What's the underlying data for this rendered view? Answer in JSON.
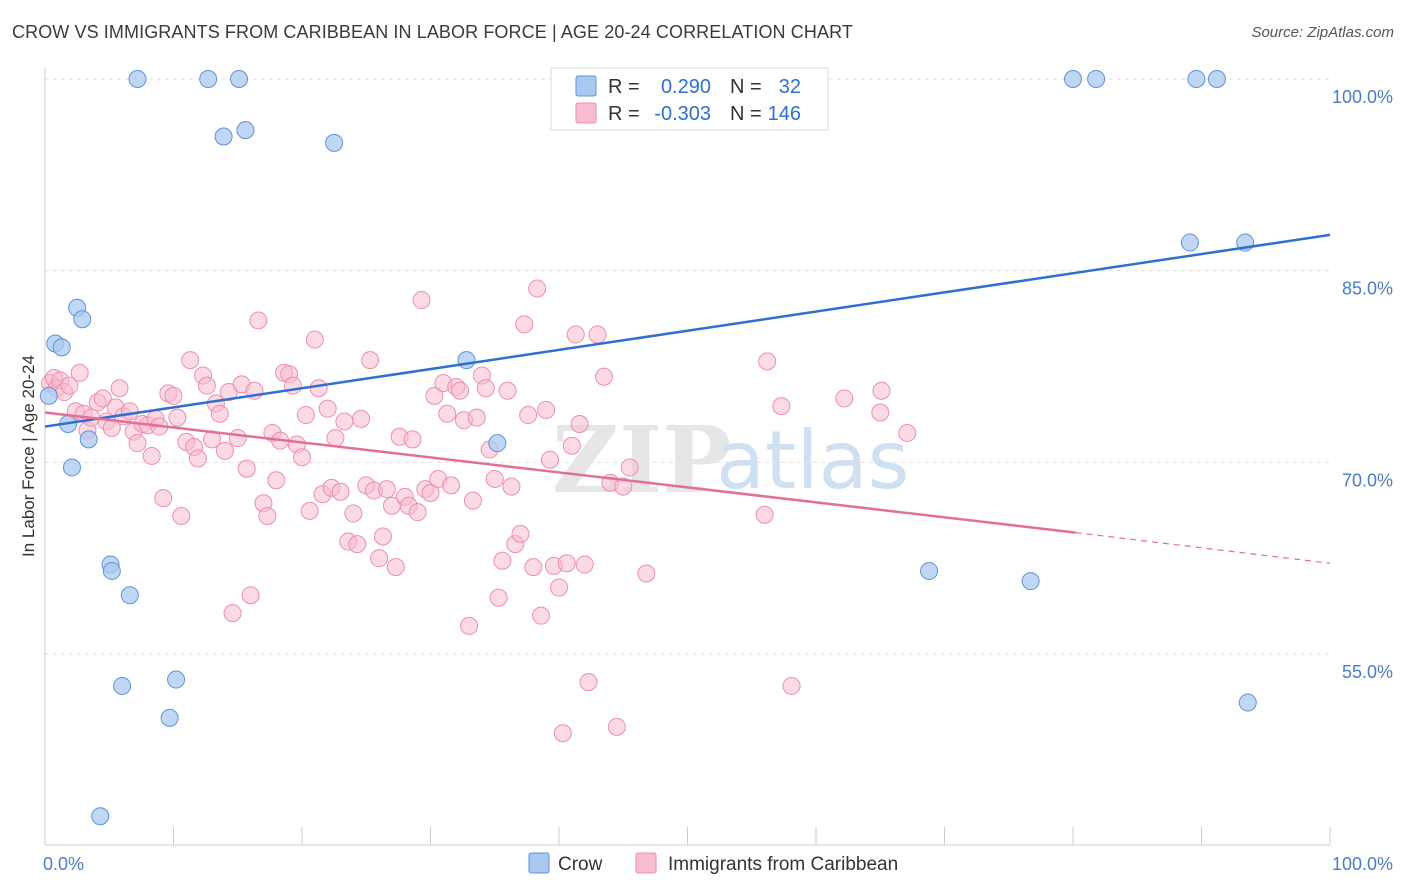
{
  "title": "CROW VS IMMIGRANTS FROM CARIBBEAN IN LABOR FORCE | AGE 20-24 CORRELATION CHART",
  "source": "Source: ZipAtlas.com",
  "watermark": {
    "zip": "ZIP",
    "atlas": "atlas"
  },
  "colors": {
    "crow_fill": "#a9c9f0",
    "crow_stroke": "#5f93d8",
    "crow_line": "#2f6fd1",
    "carib_fill": "#f7bcd0",
    "carib_stroke": "#ec8fae",
    "carib_line": "#e0709b",
    "grid": "#dddddd",
    "tick": "#4a7cc9"
  },
  "legend": {
    "rows": [
      {
        "r_label": "R =",
        "r_value": "0.290",
        "n_label": "N =",
        "n_value": "32"
      },
      {
        "r_label": "R =",
        "r_value": "-0.303",
        "n_label": "N =",
        "n_value": "146"
      }
    ]
  },
  "chart_data": {
    "type": "scatter",
    "title": "CROW VS IMMIGRANTS FROM CARIBBEAN IN LABOR FORCE | AGE 20-24 CORRELATION CHART",
    "xlabel": "",
    "ylabel": "In Labor Force | Age 20-24",
    "xlim": [
      0,
      100
    ],
    "ylim": [
      40,
      102
    ],
    "x_tick_labels": [
      "0.0%",
      "100.0%"
    ],
    "y_ticks": [
      55,
      70,
      85,
      100
    ],
    "y_tick_labels": [
      "55.0%",
      "70.0%",
      "85.0%",
      "100.0%"
    ],
    "grid": true,
    "legend_position": "top-center",
    "series": [
      {
        "name": "Crow",
        "R": 0.29,
        "N": 32,
        "trend": {
          "x": [
            0,
            100
          ],
          "y": [
            72.8,
            87.8
          ]
        },
        "points": [
          [
            0.3,
            75.2
          ],
          [
            0.8,
            79.3
          ],
          [
            1.3,
            79.0
          ],
          [
            1.8,
            73.0
          ],
          [
            2.1,
            69.6
          ],
          [
            2.5,
            82.1
          ],
          [
            2.9,
            81.2
          ],
          [
            3.4,
            71.8
          ],
          [
            4.3,
            42.3
          ],
          [
            5.1,
            62.0
          ],
          [
            5.2,
            61.5
          ],
          [
            6.0,
            52.5
          ],
          [
            6.6,
            59.6
          ],
          [
            7.2,
            100.0
          ],
          [
            9.7,
            50.0
          ],
          [
            10.2,
            53.0
          ],
          [
            12.7,
            100.0
          ],
          [
            13.9,
            95.5
          ],
          [
            15.1,
            100.0
          ],
          [
            15.6,
            96.0
          ],
          [
            22.5,
            95.0
          ],
          [
            32.8,
            78.0
          ],
          [
            35.2,
            71.5
          ],
          [
            68.8,
            61.5
          ],
          [
            76.7,
            60.7
          ],
          [
            80.0,
            100.0
          ],
          [
            81.8,
            100.0
          ],
          [
            89.1,
            87.2
          ],
          [
            89.6,
            100.0
          ],
          [
            91.2,
            100.0
          ],
          [
            93.4,
            87.2
          ],
          [
            93.6,
            51.2
          ]
        ]
      },
      {
        "name": "Immigrants from Caribbean",
        "R": -0.303,
        "N": 146,
        "trend": {
          "x": [
            0,
            80.2
          ],
          "y": [
            73.9,
            64.5
          ]
        },
        "trend_dashed": {
          "x": [
            80.2,
            100
          ],
          "y": [
            64.5,
            62.1
          ]
        },
        "points": [
          [
            0.4,
            76.2
          ],
          [
            0.7,
            76.6
          ],
          [
            0.9,
            75.8
          ],
          [
            1.2,
            76.4
          ],
          [
            1.5,
            75.5
          ],
          [
            1.9,
            76.0
          ],
          [
            2.4,
            74.0
          ],
          [
            2.7,
            77.0
          ],
          [
            3.0,
            73.8
          ],
          [
            3.3,
            72.5
          ],
          [
            3.6,
            73.5
          ],
          [
            4.1,
            74.7
          ],
          [
            4.5,
            75.0
          ],
          [
            4.8,
            73.2
          ],
          [
            5.2,
            72.7
          ],
          [
            5.5,
            74.3
          ],
          [
            5.8,
            75.8
          ],
          [
            6.1,
            73.6
          ],
          [
            6.6,
            74.0
          ],
          [
            6.9,
            72.4
          ],
          [
            7.2,
            71.5
          ],
          [
            7.6,
            73.0
          ],
          [
            8.0,
            72.9
          ],
          [
            8.3,
            70.5
          ],
          [
            8.6,
            73.4
          ],
          [
            8.9,
            72.8
          ],
          [
            9.2,
            67.2
          ],
          [
            9.6,
            75.4
          ],
          [
            10.0,
            75.2
          ],
          [
            10.3,
            73.5
          ],
          [
            10.6,
            65.8
          ],
          [
            11.0,
            71.6
          ],
          [
            11.3,
            78.0
          ],
          [
            11.6,
            71.2
          ],
          [
            11.9,
            70.3
          ],
          [
            12.3,
            76.8
          ],
          [
            12.6,
            76.0
          ],
          [
            13.0,
            71.8
          ],
          [
            13.3,
            74.6
          ],
          [
            13.6,
            73.8
          ],
          [
            14.0,
            70.9
          ],
          [
            14.3,
            75.5
          ],
          [
            14.6,
            58.2
          ],
          [
            15.0,
            71.9
          ],
          [
            15.3,
            76.1
          ],
          [
            15.7,
            69.5
          ],
          [
            16.0,
            59.6
          ],
          [
            16.3,
            75.6
          ],
          [
            16.6,
            81.1
          ],
          [
            17.0,
            66.8
          ],
          [
            17.3,
            65.8
          ],
          [
            17.7,
            72.3
          ],
          [
            18.0,
            68.6
          ],
          [
            18.3,
            71.7
          ],
          [
            18.6,
            77.0
          ],
          [
            19.0,
            76.9
          ],
          [
            19.3,
            76.0
          ],
          [
            19.6,
            71.4
          ],
          [
            20.0,
            70.4
          ],
          [
            20.3,
            73.7
          ],
          [
            20.6,
            66.2
          ],
          [
            21.0,
            79.6
          ],
          [
            21.3,
            75.8
          ],
          [
            21.6,
            67.5
          ],
          [
            22.0,
            74.2
          ],
          [
            22.3,
            68.0
          ],
          [
            22.6,
            71.9
          ],
          [
            23.0,
            67.7
          ],
          [
            23.3,
            73.2
          ],
          [
            23.6,
            63.8
          ],
          [
            24.0,
            66.0
          ],
          [
            24.3,
            63.6
          ],
          [
            24.6,
            73.4
          ],
          [
            25.0,
            68.2
          ],
          [
            25.3,
            78.0
          ],
          [
            25.6,
            67.8
          ],
          [
            26.0,
            62.5
          ],
          [
            26.3,
            64.2
          ],
          [
            26.6,
            67.9
          ],
          [
            27.0,
            66.6
          ],
          [
            27.3,
            61.8
          ],
          [
            27.6,
            72.0
          ],
          [
            28.0,
            67.3
          ],
          [
            28.3,
            66.6
          ],
          [
            28.6,
            71.8
          ],
          [
            29.0,
            66.1
          ],
          [
            29.3,
            82.7
          ],
          [
            29.6,
            67.9
          ],
          [
            30.0,
            67.6
          ],
          [
            30.3,
            75.2
          ],
          [
            30.6,
            68.7
          ],
          [
            31.0,
            76.2
          ],
          [
            31.3,
            73.8
          ],
          [
            31.6,
            68.2
          ],
          [
            32.0,
            75.9
          ],
          [
            32.3,
            75.6
          ],
          [
            32.6,
            73.3
          ],
          [
            33.0,
            57.2
          ],
          [
            33.3,
            67.0
          ],
          [
            33.6,
            73.5
          ],
          [
            34.0,
            76.8
          ],
          [
            34.3,
            75.8
          ],
          [
            34.6,
            71.0
          ],
          [
            35.0,
            68.7
          ],
          [
            35.3,
            59.4
          ],
          [
            35.6,
            62.3
          ],
          [
            36.0,
            75.6
          ],
          [
            36.3,
            68.1
          ],
          [
            36.6,
            63.6
          ],
          [
            37.0,
            64.4
          ],
          [
            37.3,
            80.8
          ],
          [
            37.6,
            73.7
          ],
          [
            38.0,
            61.8
          ],
          [
            38.3,
            83.6
          ],
          [
            38.6,
            58.0
          ],
          [
            39.0,
            74.1
          ],
          [
            39.3,
            70.2
          ],
          [
            39.6,
            61.9
          ],
          [
            40.0,
            60.2
          ],
          [
            40.3,
            48.8
          ],
          [
            40.6,
            62.1
          ],
          [
            41.0,
            71.3
          ],
          [
            41.3,
            80.0
          ],
          [
            41.6,
            73.0
          ],
          [
            42.0,
            62.0
          ],
          [
            42.3,
            52.8
          ],
          [
            43.0,
            80.0
          ],
          [
            43.5,
            76.7
          ],
          [
            44.0,
            68.4
          ],
          [
            44.5,
            49.3
          ],
          [
            45.0,
            68.1
          ],
          [
            45.5,
            69.6
          ],
          [
            46.8,
            61.3
          ],
          [
            56.0,
            65.9
          ],
          [
            56.2,
            77.9
          ],
          [
            57.3,
            74.4
          ],
          [
            58.1,
            52.5
          ],
          [
            62.2,
            75.0
          ],
          [
            65.0,
            73.9
          ],
          [
            65.1,
            75.6
          ],
          [
            67.1,
            72.3
          ]
        ]
      }
    ]
  },
  "bottom_legend": [
    "Crow",
    "Immigrants from Caribbean"
  ]
}
